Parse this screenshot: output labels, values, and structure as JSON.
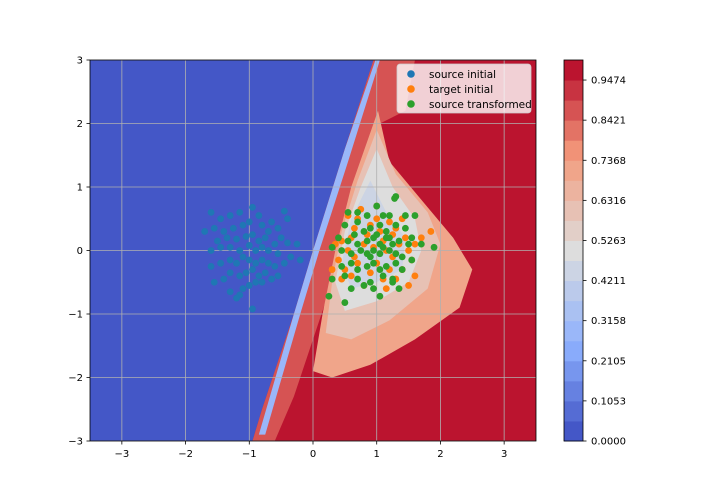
{
  "chart_data": {
    "type": "scatter",
    "xlim": [
      -3.5,
      3.5
    ],
    "ylim": [
      -3,
      3
    ],
    "xticks": [
      -3,
      -2,
      -1,
      0,
      1,
      2,
      3
    ],
    "yticks": [
      -3,
      -2,
      -1,
      0,
      1,
      2,
      3
    ],
    "grid": true,
    "legend_position": "top-right",
    "background_contour": {
      "colormap": "coolwarm",
      "levels": [
        0.0,
        0.0526,
        0.1053,
        0.1579,
        0.2105,
        0.2632,
        0.3158,
        0.3684,
        0.4211,
        0.4737,
        0.5263,
        0.5789,
        0.6316,
        0.6842,
        0.7368,
        0.7895,
        0.8421,
        0.8947,
        0.9474,
        1.0
      ],
      "colorbar_ticks": [
        "0.0000",
        "0.1053",
        "0.2105",
        "0.3158",
        "0.4211",
        "0.5263",
        "0.6316",
        "0.7368",
        "0.8421",
        "0.9474"
      ]
    },
    "series": [
      {
        "name": "source initial",
        "color": "#1f77b4",
        "points": [
          [
            -1.6,
            0.6
          ],
          [
            -1.45,
            0.5
          ],
          [
            -1.3,
            0.55
          ],
          [
            -1.15,
            0.6
          ],
          [
            -0.95,
            0.68
          ],
          [
            -0.85,
            0.55
          ],
          [
            -0.65,
            0.45
          ],
          [
            -0.45,
            0.62
          ],
          [
            -0.4,
            0.5
          ],
          [
            -1.55,
            0.35
          ],
          [
            -1.7,
            0.3
          ],
          [
            -1.4,
            0.3
          ],
          [
            -1.25,
            0.35
          ],
          [
            -1.1,
            0.4
          ],
          [
            -1.0,
            0.45
          ],
          [
            -0.8,
            0.4
          ],
          [
            -0.7,
            0.3
          ],
          [
            -0.55,
            0.35
          ],
          [
            -0.5,
            0.2
          ],
          [
            -1.5,
            0.15
          ],
          [
            -1.35,
            0.2
          ],
          [
            -1.2,
            0.18
          ],
          [
            -1.05,
            0.22
          ],
          [
            -0.95,
            0.25
          ],
          [
            -0.85,
            0.15
          ],
          [
            -0.75,
            0.2
          ],
          [
            -0.6,
            0.1
          ],
          [
            -0.4,
            0.12
          ],
          [
            -0.25,
            0.1
          ],
          [
            -1.6,
            0.0
          ],
          [
            -1.45,
            0.05
          ],
          [
            -1.3,
            0.05
          ],
          [
            -1.15,
            0.0
          ],
          [
            -1.0,
            0.08
          ],
          [
            -0.9,
            0.0
          ],
          [
            -0.8,
            0.05
          ],
          [
            -0.7,
            0.0
          ],
          [
            -0.55,
            -0.05
          ],
          [
            -0.35,
            -0.1
          ],
          [
            -0.2,
            -0.15
          ],
          [
            -1.6,
            -0.25
          ],
          [
            -1.45,
            -0.2
          ],
          [
            -1.3,
            -0.15
          ],
          [
            -1.2,
            -0.2
          ],
          [
            -1.1,
            -0.1
          ],
          [
            -1.0,
            -0.15
          ],
          [
            -0.9,
            -0.2
          ],
          [
            -0.8,
            -0.15
          ],
          [
            -0.7,
            -0.2
          ],
          [
            -0.6,
            -0.25
          ],
          [
            -0.45,
            -0.2
          ],
          [
            -1.55,
            -0.5
          ],
          [
            -1.4,
            -0.45
          ],
          [
            -1.3,
            -0.35
          ],
          [
            -1.15,
            -0.4
          ],
          [
            -1.05,
            -0.35
          ],
          [
            -0.95,
            -0.3
          ],
          [
            -0.85,
            -0.4
          ],
          [
            -0.75,
            -0.35
          ],
          [
            -0.65,
            -0.45
          ],
          [
            -0.55,
            -0.4
          ],
          [
            -1.3,
            -0.65
          ],
          [
            -1.15,
            -0.7
          ],
          [
            -1.0,
            -0.55
          ],
          [
            -0.9,
            -0.5
          ],
          [
            -0.8,
            -0.5
          ],
          [
            -1.2,
            -0.75
          ],
          [
            -0.95,
            -0.92
          ],
          [
            -1.1,
            -0.6
          ]
        ]
      },
      {
        "name": "target initial",
        "color": "#ff7f0e",
        "points": [
          [
            0.35,
            0.1
          ],
          [
            0.45,
            0.15
          ],
          [
            0.55,
            0.0
          ],
          [
            0.6,
            0.2
          ],
          [
            0.65,
            0.35
          ],
          [
            0.7,
            0.5
          ],
          [
            0.8,
            0.1
          ],
          [
            0.85,
            0.25
          ],
          [
            0.9,
            0.4
          ],
          [
            1.0,
            0.5
          ],
          [
            1.05,
            0.3
          ],
          [
            1.1,
            0.15
          ],
          [
            1.15,
            0.0
          ],
          [
            1.2,
            0.45
          ],
          [
            1.25,
            0.25
          ],
          [
            1.3,
            0.35
          ],
          [
            1.35,
            0.1
          ],
          [
            1.45,
            0.2
          ],
          [
            1.5,
            0.0
          ],
          [
            1.55,
            -0.15
          ],
          [
            1.6,
            0.1
          ],
          [
            1.7,
            0.2
          ],
          [
            1.85,
            0.3
          ],
          [
            0.3,
            -0.3
          ],
          [
            0.4,
            -0.15
          ],
          [
            0.5,
            -0.3
          ],
          [
            0.6,
            -0.4
          ],
          [
            0.7,
            -0.2
          ],
          [
            0.8,
            -0.55
          ],
          [
            0.9,
            -0.35
          ],
          [
            1.0,
            -0.2
          ],
          [
            1.1,
            -0.45
          ],
          [
            1.2,
            -0.3
          ],
          [
            1.3,
            -0.45
          ],
          [
            1.4,
            -0.3
          ],
          [
            1.5,
            -0.55
          ],
          [
            0.55,
            0.55
          ],
          [
            0.75,
            0.65
          ],
          [
            1.0,
            0.7
          ],
          [
            1.25,
            -0.1
          ],
          [
            0.95,
            0.05
          ],
          [
            1.4,
            0.5
          ],
          [
            0.65,
            -0.1
          ],
          [
            1.6,
            -0.4
          ],
          [
            0.45,
            -0.45
          ],
          [
            1.15,
            -0.6
          ]
        ]
      },
      {
        "name": "source transformed",
        "color": "#2ca02c",
        "points": [
          [
            0.55,
            0.6
          ],
          [
            0.7,
            0.6
          ],
          [
            0.85,
            0.55
          ],
          [
            1.0,
            0.7
          ],
          [
            1.1,
            0.55
          ],
          [
            1.2,
            0.55
          ],
          [
            1.3,
            0.85
          ],
          [
            1.28,
            0.82
          ],
          [
            1.45,
            0.55
          ],
          [
            1.6,
            0.55
          ],
          [
            0.5,
            0.4
          ],
          [
            0.7,
            0.45
          ],
          [
            0.9,
            0.35
          ],
          [
            1.05,
            0.4
          ],
          [
            1.15,
            0.3
          ],
          [
            1.3,
            0.4
          ],
          [
            1.45,
            0.35
          ],
          [
            1.55,
            0.2
          ],
          [
            0.4,
            0.2
          ],
          [
            0.55,
            0.15
          ],
          [
            0.7,
            0.1
          ],
          [
            0.85,
            0.15
          ],
          [
            0.95,
            0.2
          ],
          [
            1.05,
            0.1
          ],
          [
            1.15,
            0.2
          ],
          [
            1.25,
            0.1
          ],
          [
            1.35,
            0.15
          ],
          [
            1.5,
            0.1
          ],
          [
            1.7,
            0.1
          ],
          [
            1.9,
            0.05
          ],
          [
            0.3,
            0.05
          ],
          [
            0.45,
            0.0
          ],
          [
            0.6,
            -0.05
          ],
          [
            0.75,
            0.0
          ],
          [
            0.85,
            -0.05
          ],
          [
            0.95,
            0.0
          ],
          [
            1.05,
            -0.05
          ],
          [
            1.2,
            0.0
          ],
          [
            1.3,
            -0.05
          ],
          [
            1.4,
            -0.1
          ],
          [
            1.55,
            -0.15
          ],
          [
            0.45,
            -0.25
          ],
          [
            0.6,
            -0.2
          ],
          [
            0.7,
            -0.3
          ],
          [
            0.85,
            -0.25
          ],
          [
            0.95,
            -0.2
          ],
          [
            1.05,
            -0.3
          ],
          [
            1.15,
            -0.25
          ],
          [
            1.3,
            -0.2
          ],
          [
            1.4,
            -0.3
          ],
          [
            0.3,
            -0.45
          ],
          [
            0.5,
            -0.4
          ],
          [
            0.7,
            -0.45
          ],
          [
            0.9,
            -0.5
          ],
          [
            1.1,
            -0.4
          ],
          [
            1.25,
            -0.45
          ],
          [
            1.35,
            -0.6
          ],
          [
            0.25,
            -0.72
          ],
          [
            0.5,
            -0.82
          ],
          [
            0.6,
            -0.6
          ],
          [
            0.8,
            -0.55
          ],
          [
            0.95,
            -0.6
          ],
          [
            1.05,
            -0.72
          ],
          [
            1.25,
            -0.5
          ],
          [
            0.65,
            0.25
          ],
          [
            1.0,
            0.25
          ],
          [
            1.2,
            0.2
          ],
          [
            0.8,
            0.3
          ],
          [
            0.9,
            -0.1
          ],
          [
            1.1,
            0.05
          ]
        ]
      }
    ]
  }
}
